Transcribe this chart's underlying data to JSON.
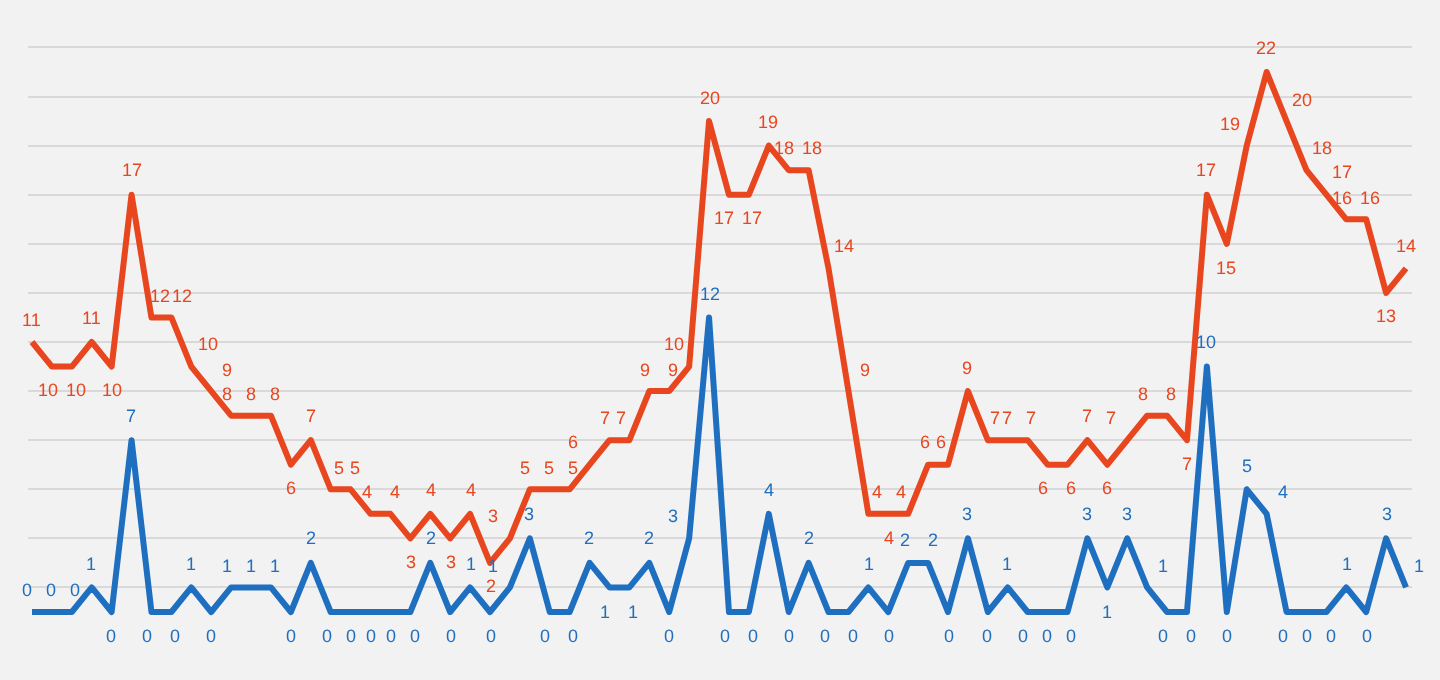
{
  "chart_data": {
    "type": "line",
    "categories": [
      null,
      null,
      null,
      null,
      null,
      null,
      null,
      null,
      null,
      null,
      null,
      null,
      null,
      null,
      null,
      null,
      null,
      null,
      null,
      null,
      null,
      null,
      null,
      null,
      null,
      null,
      null,
      null,
      null,
      null,
      null,
      null,
      null,
      null,
      null,
      null,
      null,
      null,
      null,
      null,
      null,
      null,
      null,
      null,
      null,
      null,
      null,
      null,
      null,
      null,
      null,
      null,
      null,
      null,
      null,
      null,
      null,
      null,
      null,
      null,
      null,
      null,
      null,
      null,
      null,
      null,
      null,
      null,
      null,
      null
    ],
    "series": [
      {
        "color": "#e8461e",
        "values": [
          11,
          10,
          10,
          11,
          10,
          17,
          12,
          12,
          10,
          9,
          8,
          8,
          8,
          6,
          7,
          5,
          5,
          4,
          4,
          3,
          4,
          3,
          4,
          2,
          3,
          5,
          5,
          5,
          6,
          7,
          7,
          9,
          9,
          10,
          20,
          17,
          17,
          19,
          18,
          18,
          14,
          9,
          4,
          4,
          4,
          6,
          6,
          9,
          7,
          7,
          7,
          6,
          6,
          7,
          6,
          7,
          8,
          8,
          7,
          17,
          15,
          19,
          22,
          20,
          18,
          17,
          16,
          16,
          13,
          14
        ]
      },
      {
        "color": "#1f6fc0",
        "values": [
          0,
          0,
          0,
          1,
          0,
          7,
          0,
          0,
          1,
          0,
          1,
          1,
          1,
          0,
          2,
          0,
          0,
          0,
          0,
          0,
          2,
          0,
          1,
          0,
          1,
          3,
          0,
          0,
          2,
          1,
          1,
          2,
          0,
          3,
          12,
          0,
          0,
          4,
          0,
          2,
          0,
          0,
          1,
          0,
          2,
          2,
          0,
          3,
          0,
          1,
          0,
          0,
          0,
          3,
          1,
          3,
          1,
          0,
          0,
          10,
          0,
          5,
          4,
          0,
          0,
          0,
          1,
          0,
          3,
          1
        ]
      }
    ],
    "data_labels": true,
    "yticks": [
      {
        "value": 1,
        "label": null
      },
      {
        "value": 3,
        "label": null
      },
      {
        "value": 5,
        "label": null
      },
      {
        "value": 7,
        "label": null
      },
      {
        "value": 9,
        "label": null
      },
      {
        "value": 11,
        "label": null
      },
      {
        "value": 13,
        "label": null
      },
      {
        "value": 15,
        "label": null
      },
      {
        "value": 17,
        "label": null
      },
      {
        "value": 19,
        "label": null
      },
      {
        "value": 21,
        "label": null
      },
      {
        "value": 23,
        "label": null
      }
    ],
    "grid": "y",
    "marker": "none",
    "line_style": "solid"
  }
}
